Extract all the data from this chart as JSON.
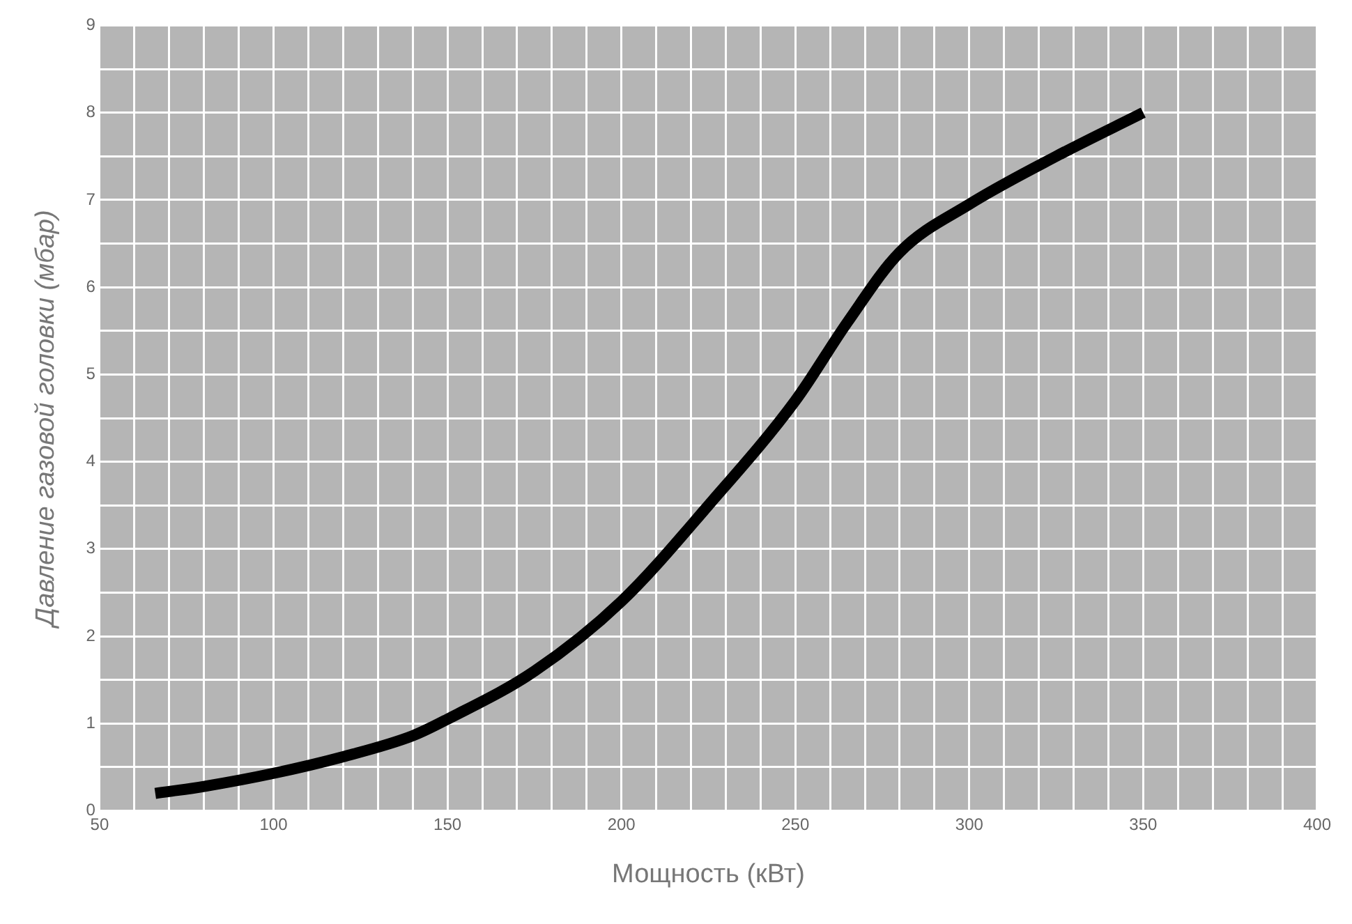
{
  "chart_data": {
    "type": "line",
    "xlabel": "Мощность (кВт)",
    "ylabel": "Давление газовой головки (мбар)",
    "x": [
      66,
      80,
      100,
      120,
      140,
      150,
      175,
      200,
      225,
      250,
      265,
      280,
      300,
      325,
      350
    ],
    "series": [
      {
        "color": "#000000",
        "values": [
          0.2,
          0.28,
          0.43,
          0.62,
          0.86,
          1.05,
          1.6,
          2.4,
          3.5,
          4.7,
          5.6,
          6.4,
          6.95,
          7.5,
          8.0
        ]
      }
    ],
    "xlim": [
      50,
      400
    ],
    "xticks": [
      50,
      {
        "value": 60,
        "label": null
      },
      {
        "value": 70,
        "label": null
      },
      {
        "value": 80,
        "label": null
      },
      {
        "value": 90,
        "label": null
      },
      100,
      {
        "value": 110,
        "label": null
      },
      {
        "value": 120,
        "label": null
      },
      {
        "value": 130,
        "label": null
      },
      {
        "value": 140,
        "label": null
      },
      150,
      {
        "value": 160,
        "label": null
      },
      {
        "value": 170,
        "label": null
      },
      {
        "value": 180,
        "label": null
      },
      {
        "value": 190,
        "label": null
      },
      200,
      {
        "value": 210,
        "label": null
      },
      {
        "value": 220,
        "label": null
      },
      {
        "value": 230,
        "label": null
      },
      {
        "value": 240,
        "label": null
      },
      250,
      {
        "value": 260,
        "label": null
      },
      {
        "value": 270,
        "label": null
      },
      {
        "value": 280,
        "label": null
      },
      {
        "value": 290,
        "label": null
      },
      300,
      {
        "value": 310,
        "label": null
      },
      {
        "value": 320,
        "label": null
      },
      {
        "value": 330,
        "label": null
      },
      {
        "value": 340,
        "label": null
      },
      350,
      {
        "value": 360,
        "label": null
      },
      {
        "value": 370,
        "label": null
      },
      {
        "value": 380,
        "label": null
      },
      {
        "value": 390,
        "label": null
      },
      400
    ],
    "ylim": [
      0,
      9
    ],
    "yticks": [
      0,
      {
        "value": 0.5,
        "label": null
      },
      1,
      {
        "value": 1.5,
        "label": null
      },
      2,
      {
        "value": 2.5,
        "label": null
      },
      3,
      {
        "value": 3.5,
        "label": null
      },
      4,
      {
        "value": 4.5,
        "label": null
      },
      5,
      {
        "value": 5.5,
        "label": null
      },
      6,
      {
        "value": 6.5,
        "label": null
      },
      7,
      {
        "value": 7.5,
        "label": null
      },
      8,
      {
        "value": 8.5,
        "label": null
      },
      9
    ],
    "grid": true,
    "legend": false,
    "marker": "none",
    "line_style": "solid"
  }
}
